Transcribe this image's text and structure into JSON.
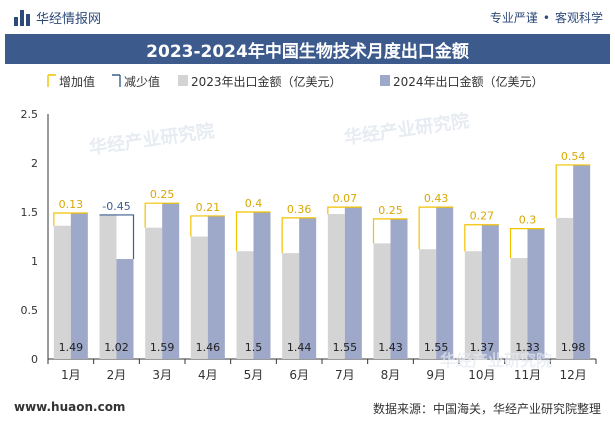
{
  "header": {
    "site_name": "华经情报网",
    "tagline_left": "专业严谨",
    "tagline_right": "客观科学"
  },
  "footer": {
    "website": "www.huaon.com",
    "source": "数据来源：中国海关，华经产业研究院整理"
  },
  "watermark": "华经产业研究院",
  "colors": {
    "bar_2023": "#d4d4d4",
    "bar_2024": "#9ea8c8",
    "increase": "#f2c200",
    "decrease": "#3a5f8c",
    "title_bg": "#3c5a8c"
  },
  "chart_data": {
    "type": "bar",
    "title": "2023-2024年中国生物技术月度出口金额",
    "legend": [
      "增加值",
      "减少值",
      "2023年出口金额（亿美元）",
      "2024年出口金额（亿美元）"
    ],
    "legend_position": "top-left",
    "categories": [
      "1月",
      "2月",
      "3月",
      "4月",
      "5月",
      "6月",
      "7月",
      "8月",
      "9月",
      "10月",
      "11月",
      "12月"
    ],
    "series": [
      {
        "name": "2023年出口金额（亿美元）",
        "values": [
          1.36,
          1.47,
          1.34,
          1.25,
          1.1,
          1.08,
          1.48,
          1.18,
          1.12,
          1.1,
          1.03,
          1.44
        ]
      },
      {
        "name": "2024年出口金额（亿美元）",
        "values": [
          1.49,
          1.02,
          1.59,
          1.46,
          1.5,
          1.44,
          1.55,
          1.43,
          1.55,
          1.37,
          1.33,
          1.98
        ]
      }
    ],
    "change_labels": [
      "0.13",
      "-0.45",
      "0.25",
      "0.21",
      "0.4",
      "0.36",
      "0.07",
      "0.25",
      "0.43",
      "0.27",
      "0.3",
      "0.54"
    ],
    "value_labels_2024": [
      "1.49",
      "1.02",
      "1.59",
      "1.46",
      "1.5",
      "1.44",
      "1.55",
      "1.43",
      "1.55",
      "1.37",
      "1.33",
      "1.98"
    ],
    "yticks": [
      "0",
      "0.5",
      "1",
      "1.5",
      "2",
      "2.5"
    ],
    "ylim": [
      0,
      2.5
    ],
    "grid": false
  }
}
